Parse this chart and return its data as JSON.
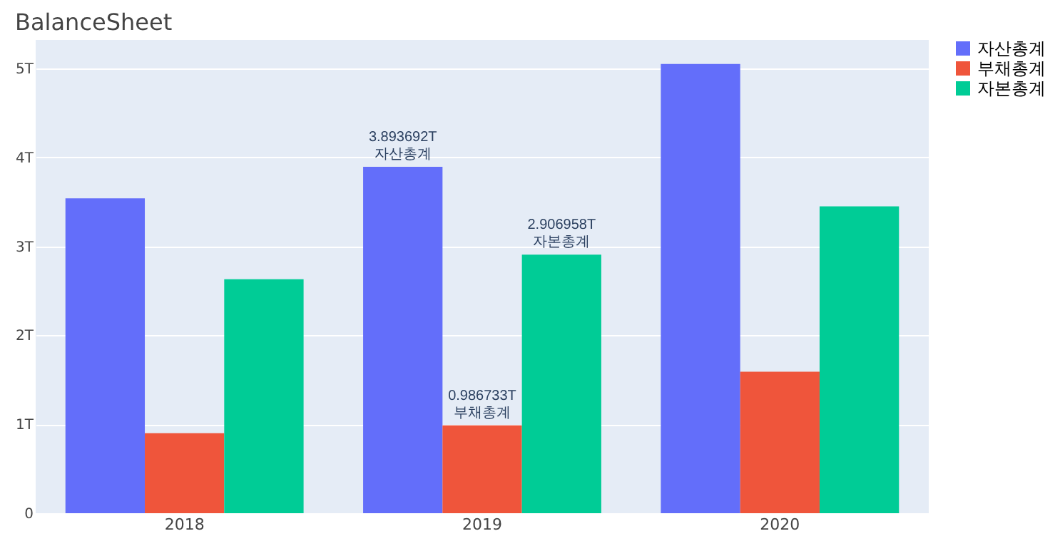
{
  "chart_data": {
    "type": "bar",
    "title": "BalanceSheet",
    "categories": [
      "2018",
      "2019",
      "2020"
    ],
    "series": [
      {
        "name": "자산총계",
        "color": "#636efa",
        "values": [
          3.54,
          3.893692,
          5.05
        ],
        "value_labels": [
          null,
          "3.893692T",
          null
        ]
      },
      {
        "name": "부채총계",
        "color": "#ef553b",
        "values": [
          0.9,
          0.986733,
          1.59
        ],
        "value_labels": [
          null,
          "0.986733T",
          null
        ]
      },
      {
        "name": "자본총계",
        "color": "#00cc96",
        "values": [
          2.63,
          2.906958,
          3.45
        ],
        "value_labels": [
          null,
          "2.906958T",
          null
        ]
      }
    ],
    "ylim": [
      0,
      5.32
    ],
    "yticks": [
      0,
      {
        "value": 1,
        "label": "1T"
      },
      {
        "value": 2,
        "label": "2T"
      },
      {
        "value": 3,
        "label": "3T"
      },
      {
        "value": 4,
        "label": "4T"
      },
      {
        "value": 5,
        "label": "5T"
      }
    ],
    "grid": "y",
    "legend": "top right"
  }
}
